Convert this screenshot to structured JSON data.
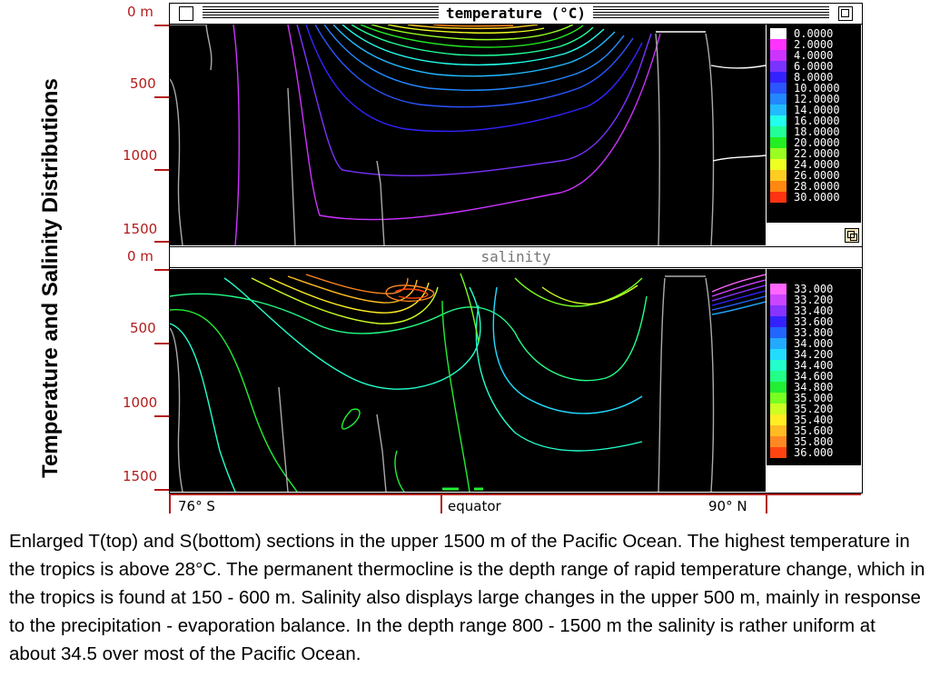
{
  "slide": {
    "vertical_title": "Temperature and Salinity Distributions",
    "caption": "Enlarged T(top) and S(bottom) sections in the upper 1500 m of the Pacific Ocean. The highest temperature in the tropics is above 28°C. The permanent thermocline is the depth range of rapid temperature change, which in the tropics is found at 150 - 600 m. Salinity also displays large changes in the upper 500 m, mainly in response to the precipitation - evaporation balance. In the depth range 800 - 1500 m the salinity is rather uniform at about 34.5 over most of the Pacific Ocean."
  },
  "temperature_window": {
    "title": "temperature (°C)",
    "depth_labels": [
      "0 m",
      "500",
      "1000",
      "1500"
    ],
    "legend": [
      {
        "label": "0.0000",
        "color": "#ffffff"
      },
      {
        "label": "2.0000",
        "color": "#ff33ff"
      },
      {
        "label": "4.0000",
        "color": "#cc33ff"
      },
      {
        "label": "6.0000",
        "color": "#7a33ff"
      },
      {
        "label": "8.0000",
        "color": "#3322ff"
      },
      {
        "label": "10.0000",
        "color": "#2a55ff"
      },
      {
        "label": "12.0000",
        "color": "#2288ff"
      },
      {
        "label": "14.0000",
        "color": "#22bbff"
      },
      {
        "label": "16.0000",
        "color": "#22ffee"
      },
      {
        "label": "18.0000",
        "color": "#22ff99"
      },
      {
        "label": "20.0000",
        "color": "#22ee22"
      },
      {
        "label": "22.0000",
        "color": "#99ff22"
      },
      {
        "label": "24.0000",
        "color": "#eeff22"
      },
      {
        "label": "26.0000",
        "color": "#ffcc22"
      },
      {
        "label": "28.0000",
        "color": "#ff8811"
      },
      {
        "label": "30.0000",
        "color": "#ff3311"
      }
    ]
  },
  "salinity_window": {
    "title": "salinity",
    "depth_labels": [
      "0 m",
      "500",
      "1000",
      "1500"
    ],
    "legend": [
      {
        "label": "33.000",
        "color": "#ff66ff"
      },
      {
        "label": "33.200",
        "color": "#cc44ff"
      },
      {
        "label": "33.400",
        "color": "#8833ff"
      },
      {
        "label": "33.600",
        "color": "#3322ff"
      },
      {
        "label": "33.800",
        "color": "#2266ff"
      },
      {
        "label": "34.000",
        "color": "#22aaff"
      },
      {
        "label": "34.200",
        "color": "#22ddff"
      },
      {
        "label": "34.400",
        "color": "#22ffcc"
      },
      {
        "label": "34.600",
        "color": "#22ff88"
      },
      {
        "label": "34.800",
        "color": "#22ee33"
      },
      {
        "label": "35.000",
        "color": "#77ff22"
      },
      {
        "label": "35.200",
        "color": "#ccff22"
      },
      {
        "label": "35.400",
        "color": "#ffee22"
      },
      {
        "label": "35.600",
        "color": "#ffbb22"
      },
      {
        "label": "35.800",
        "color": "#ff8822"
      },
      {
        "label": "36.000",
        "color": "#ff4411"
      }
    ]
  },
  "x_axis": {
    "left": "76° S",
    "center": "equator",
    "right": "90° N"
  }
}
